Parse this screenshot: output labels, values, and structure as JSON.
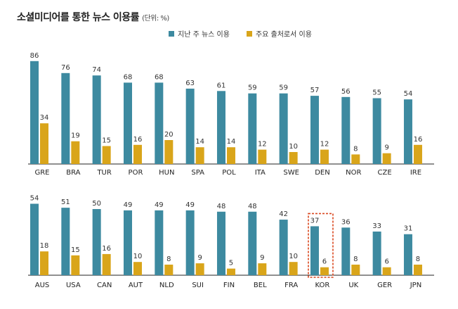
{
  "title": "소셜미디어를 통한 뉴스 이용률",
  "unit": "(단위: %)",
  "colors": {
    "weekly": "#3d8aa0",
    "main": "#d9a51a",
    "highlight": "#d9451c"
  },
  "chart_data": [
    {
      "type": "bar",
      "categories": [
        "GRE",
        "BRA",
        "TUR",
        "POR",
        "HUN",
        "SPA",
        "POL",
        "ITA",
        "SWE",
        "DEN",
        "NOR",
        "CZE",
        "IRE"
      ],
      "series": [
        {
          "name": "지난 주 뉴스 이용",
          "values": [
            86,
            76,
            74,
            68,
            68,
            63,
            61,
            59,
            59,
            57,
            56,
            55,
            54
          ]
        },
        {
          "name": "주요 출처로서 이용",
          "values": [
            34,
            19,
            15,
            16,
            20,
            14,
            14,
            12,
            10,
            12,
            8,
            9,
            16
          ]
        }
      ],
      "ylim": [
        0,
        90
      ]
    },
    {
      "type": "bar",
      "categories": [
        "AUS",
        "USA",
        "CAN",
        "AUT",
        "NLD",
        "SUI",
        "FIN",
        "BEL",
        "FRA",
        "KOR",
        "UK",
        "GER",
        "JPN"
      ],
      "series": [
        {
          "name": "지난 주 뉴스 이용",
          "values": [
            54,
            51,
            50,
            49,
            49,
            49,
            48,
            48,
            42,
            37,
            36,
            33,
            31
          ]
        },
        {
          "name": "주요 출처로서 이용",
          "values": [
            18,
            15,
            16,
            10,
            8,
            9,
            5,
            9,
            10,
            6,
            8,
            6,
            8
          ]
        }
      ],
      "ylim": [
        0,
        90
      ],
      "highlight": "KOR"
    }
  ]
}
